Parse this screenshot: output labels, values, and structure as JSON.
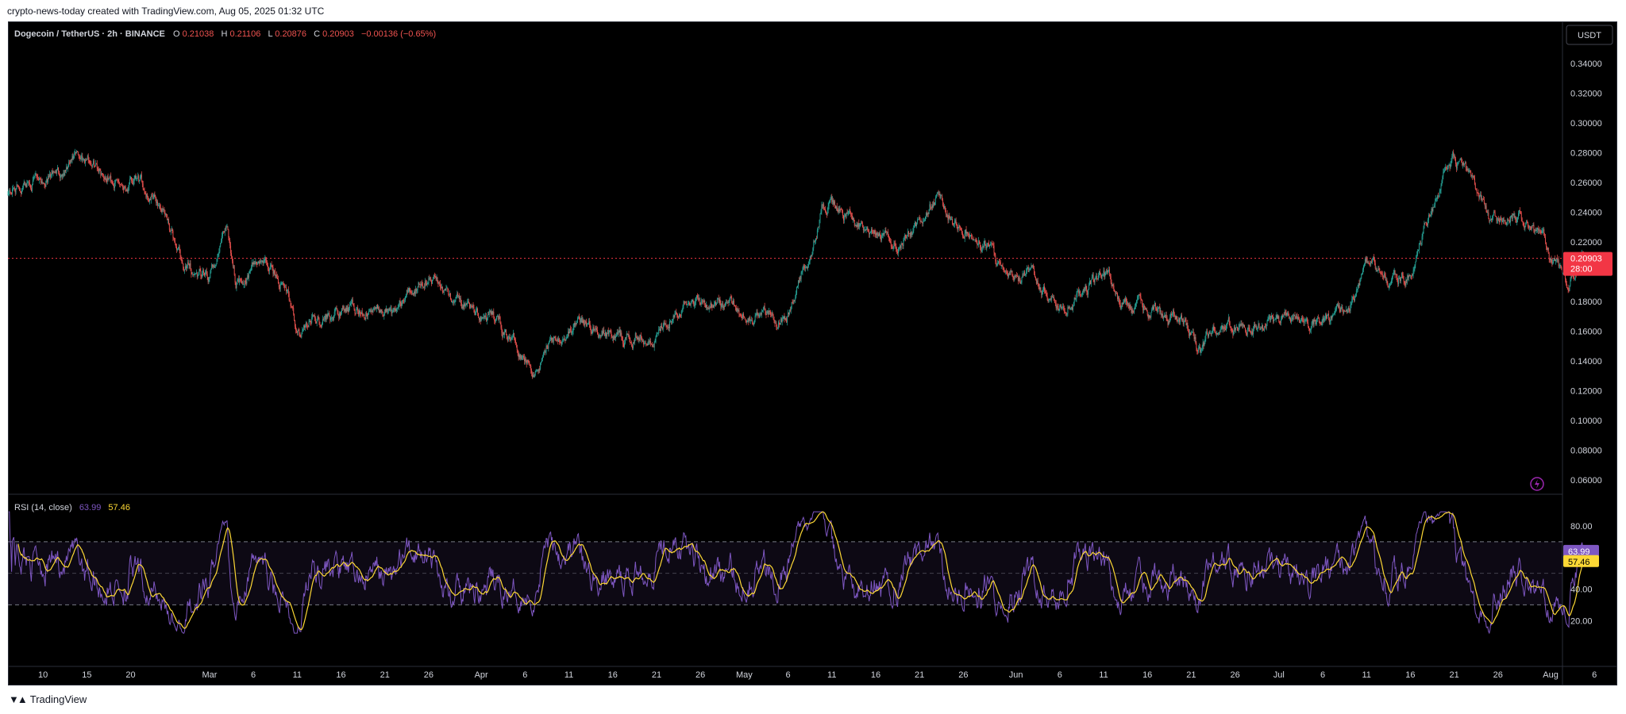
{
  "caption": "crypto-news-today created with TradingView.com, Aug 05, 2025 01:32 UTC",
  "brand": "TradingView",
  "header": {
    "symbol": "Dogecoin / TetherUS · 2h · BINANCE",
    "o_label": "O",
    "o_value": "0.21038",
    "h_label": "H",
    "h_value": "0.21106",
    "l_label": "L",
    "l_value": "0.20876",
    "c_label": "C",
    "c_value": "0.20903",
    "change": "−0.00136 (−0.65%)"
  },
  "currency_button": "USDT",
  "price_tag": {
    "price": "0.20903",
    "countdown": "28:00"
  },
  "rsi": {
    "label": "RSI (14, close)",
    "value": "63.99",
    "ma_value": "57.46"
  },
  "colors": {
    "up": "#26a69a",
    "down": "#ef5350",
    "rsi_line": "#7e57c2",
    "rsi_ma": "#fdd835",
    "background": "#000000",
    "price_line": "#f23645"
  },
  "icons": {
    "alert": "lightning-icon"
  },
  "chart_data": [
    {
      "type": "candlestick",
      "title": "Dogecoin / TetherUS · 2h · BINANCE",
      "x_tick_labels": [
        "10",
        "15",
        "20",
        "Mar",
        "6",
        "11",
        "16",
        "21",
        "26",
        "Apr",
        "6",
        "11",
        "16",
        "21",
        "26",
        "May",
        "6",
        "11",
        "16",
        "21",
        "26",
        "Jun",
        "6",
        "11",
        "16",
        "21",
        "26",
        "Jul",
        "6",
        "11",
        "16",
        "21",
        "26",
        "Aug",
        "6"
      ],
      "y_tick_labels": [
        "0.34000",
        "0.32000",
        "0.30000",
        "0.28000",
        "0.26000",
        "0.24000",
        "0.22000",
        "0.18000",
        "0.16000",
        "0.14000",
        "0.12000",
        "0.10000",
        "0.08000",
        "0.06000"
      ],
      "ylim": [
        0.05,
        0.35
      ],
      "last_price": 0.20903,
      "approx_close_path": [
        {
          "x": "Feb 06",
          "y": 0.255
        },
        {
          "x": "Feb 09",
          "y": 0.262
        },
        {
          "x": "Feb 12",
          "y": 0.268
        },
        {
          "x": "Feb 15",
          "y": 0.278
        },
        {
          "x": "Feb 18",
          "y": 0.262
        },
        {
          "x": "Feb 21",
          "y": 0.258
        },
        {
          "x": "Feb 24",
          "y": 0.24
        },
        {
          "x": "Feb 26",
          "y": 0.203
        },
        {
          "x": "Mar 01",
          "y": 0.193
        },
        {
          "x": "Mar 03",
          "y": 0.233
        },
        {
          "x": "Mar 04",
          "y": 0.195
        },
        {
          "x": "Mar 07",
          "y": 0.208
        },
        {
          "x": "Mar 10",
          "y": 0.185
        },
        {
          "x": "Mar 11",
          "y": 0.155
        },
        {
          "x": "Mar 13",
          "y": 0.17
        },
        {
          "x": "Mar 18",
          "y": 0.173
        },
        {
          "x": "Mar 22",
          "y": 0.172
        },
        {
          "x": "Mar 26",
          "y": 0.2
        },
        {
          "x": "Mar 29",
          "y": 0.178
        },
        {
          "x": "Apr 03",
          "y": 0.165
        },
        {
          "x": "Apr 06",
          "y": 0.145
        },
        {
          "x": "Apr 07",
          "y": 0.135
        },
        {
          "x": "Apr 09",
          "y": 0.155
        },
        {
          "x": "Apr 12",
          "y": 0.165
        },
        {
          "x": "Apr 17",
          "y": 0.155
        },
        {
          "x": "Apr 21",
          "y": 0.16
        },
        {
          "x": "Apr 23",
          "y": 0.178
        },
        {
          "x": "Apr 26",
          "y": 0.182
        },
        {
          "x": "Apr 30",
          "y": 0.176
        },
        {
          "x": "May 04",
          "y": 0.17
        },
        {
          "x": "May 06",
          "y": 0.172
        },
        {
          "x": "May 08",
          "y": 0.205
        },
        {
          "x": "May 10",
          "y": 0.245
        },
        {
          "x": "May 12",
          "y": 0.24
        },
        {
          "x": "May 15",
          "y": 0.225
        },
        {
          "x": "May 18",
          "y": 0.218
        },
        {
          "x": "May 21",
          "y": 0.232
        },
        {
          "x": "May 23",
          "y": 0.25
        },
        {
          "x": "May 26",
          "y": 0.228
        },
        {
          "x": "May 29",
          "y": 0.215
        },
        {
          "x": "May 31",
          "y": 0.193
        },
        {
          "x": "Jun 03",
          "y": 0.196
        },
        {
          "x": "Jun 06",
          "y": 0.175
        },
        {
          "x": "Jun 08",
          "y": 0.183
        },
        {
          "x": "Jun 11",
          "y": 0.2
        },
        {
          "x": "Jun 13",
          "y": 0.178
        },
        {
          "x": "Jun 17",
          "y": 0.172
        },
        {
          "x": "Jun 20",
          "y": 0.168
        },
        {
          "x": "Jun 22",
          "y": 0.147
        },
        {
          "x": "Jun 24",
          "y": 0.163
        },
        {
          "x": "Jun 28",
          "y": 0.163
        },
        {
          "x": "Jul 02",
          "y": 0.165
        },
        {
          "x": "Jul 06",
          "y": 0.168
        },
        {
          "x": "Jul 09",
          "y": 0.177
        },
        {
          "x": "Jul 11",
          "y": 0.205
        },
        {
          "x": "Jul 14",
          "y": 0.195
        },
        {
          "x": "Jul 16",
          "y": 0.2
        },
        {
          "x": "Jul 18",
          "y": 0.238
        },
        {
          "x": "Jul 21",
          "y": 0.275
        },
        {
          "x": "Jul 23",
          "y": 0.26
        },
        {
          "x": "Jul 25",
          "y": 0.232
        },
        {
          "x": "Jul 28",
          "y": 0.24
        },
        {
          "x": "Jul 31",
          "y": 0.222
        },
        {
          "x": "Aug 02",
          "y": 0.198
        },
        {
          "x": "Aug 03",
          "y": 0.19
        },
        {
          "x": "Aug 05",
          "y": 0.209
        }
      ]
    },
    {
      "type": "line",
      "title": "RSI (14, close)",
      "series": [
        {
          "name": "RSI",
          "last_value": 63.99
        },
        {
          "name": "RSI-based MA",
          "last_value": 57.46
        }
      ],
      "y_tick_labels": [
        "80.00",
        "40.00",
        "20.00"
      ],
      "bands": [
        70,
        50,
        30
      ],
      "ylim": [
        11,
        91
      ]
    }
  ]
}
